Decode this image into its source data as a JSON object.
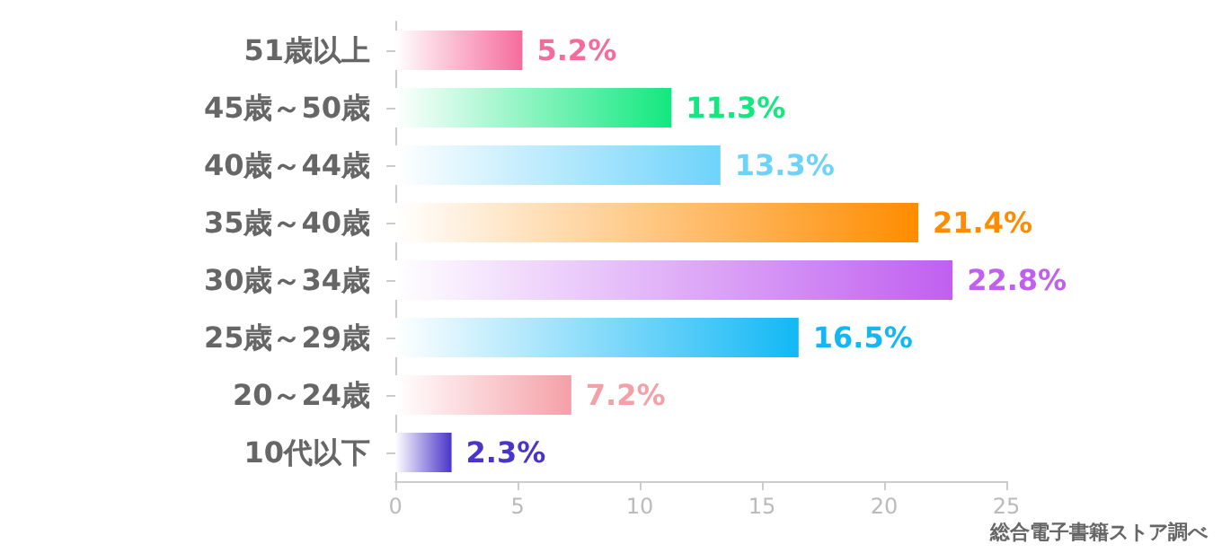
{
  "chart_data": {
    "type": "bar",
    "orientation": "horizontal",
    "categories": [
      "51歳以上",
      "45歳～50歳",
      "40歳～44歳",
      "35歳～40歳",
      "30歳～34歳",
      "25歳～29歳",
      "20～24歳",
      "10代以下"
    ],
    "values": [
      5.2,
      11.3,
      13.3,
      21.4,
      22.8,
      16.5,
      7.2,
      2.3
    ],
    "value_labels": [
      "5.2%",
      "11.3%",
      "13.3%",
      "21.4%",
      "22.8%",
      "16.5%",
      "7.2%",
      "2.3%"
    ],
    "colors": [
      "#f56c9c",
      "#12e87f",
      "#6ed3fb",
      "#ff8c00",
      "#c05ff0",
      "#12b8f5",
      "#f5a0a8",
      "#4a35c9"
    ],
    "xlim": [
      0,
      25
    ],
    "xticks": [
      0,
      5,
      10,
      15,
      20,
      25
    ],
    "grid": false,
    "annotations": [
      "総合電子書籍ストア調べ"
    ]
  }
}
